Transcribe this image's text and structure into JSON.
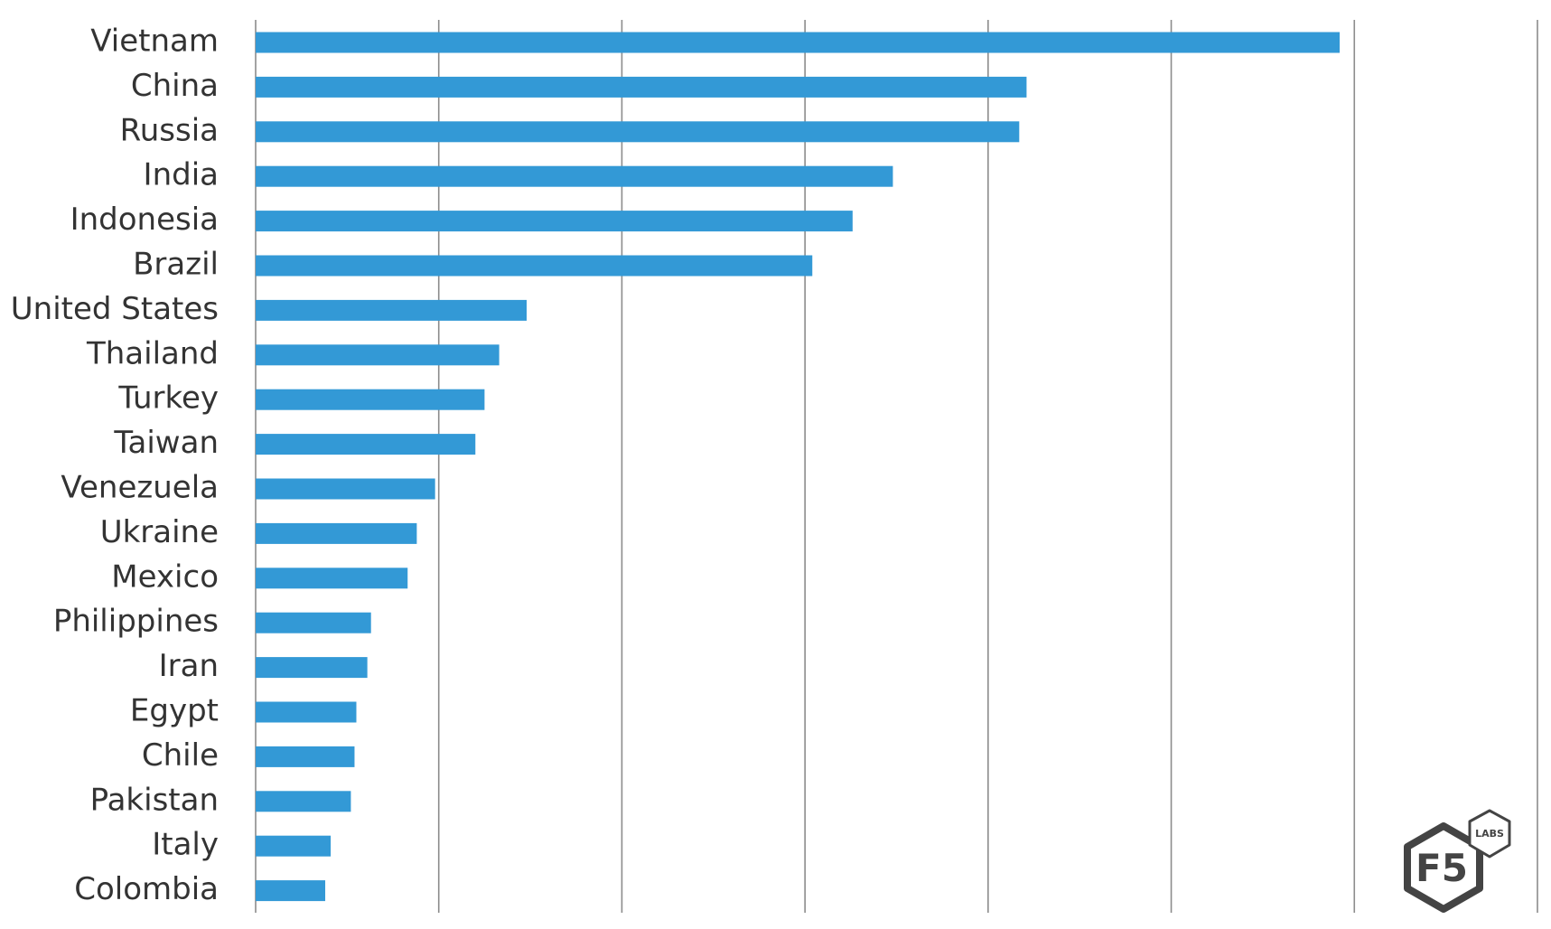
{
  "chart_data": {
    "type": "bar",
    "orientation": "horizontal",
    "categories": [
      "Vietnam",
      "China",
      "Russia",
      "India",
      "Indonesia",
      "Brazil",
      "United States",
      "Thailand",
      "Turkey",
      "Taiwan",
      "Venezuela",
      "Ukraine",
      "Mexico",
      "Philippines",
      "Iran",
      "Egypt",
      "Chile",
      "Pakistan",
      "Italy",
      "Colombia"
    ],
    "values": [
      5.92,
      4.21,
      4.17,
      3.48,
      3.26,
      3.04,
      1.48,
      1.33,
      1.25,
      1.2,
      0.98,
      0.88,
      0.83,
      0.63,
      0.61,
      0.55,
      0.54,
      0.52,
      0.41,
      0.38
    ],
    "xlim": [
      0,
      7
    ],
    "grid": true,
    "bar_color": "#3399d6",
    "title": "",
    "xlabel": "",
    "ylabel": ""
  },
  "logo": {
    "brand_text": "F5",
    "badge_text": "LABS",
    "color": "#444444"
  }
}
